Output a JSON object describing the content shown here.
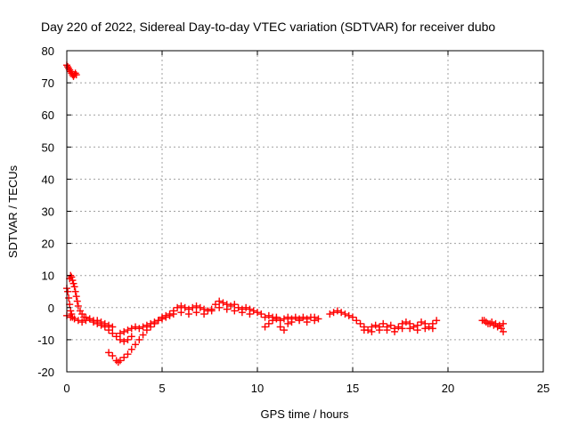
{
  "chart_data": {
    "type": "scatter",
    "title": "Day 220 of 2022, Sidereal Day-to-day VTEC variation (SDTVAR) for receiver dubo",
    "xlabel": "GPS time / hours",
    "ylabel": "SDTVAR / TECUs",
    "xlim": [
      0,
      25
    ],
    "ylim": [
      -20,
      80
    ],
    "x_ticks": [
      0,
      5,
      10,
      15,
      20,
      25
    ],
    "y_ticks": [
      -20,
      -10,
      0,
      10,
      20,
      30,
      40,
      50,
      60,
      70,
      80
    ],
    "grid": true,
    "marker": "plus",
    "color": "#ff0000",
    "series": [
      {
        "name": "SDTVAR",
        "points": [
          [
            0.0,
            75.5
          ],
          [
            0.05,
            75
          ],
          [
            0.1,
            74.5
          ],
          [
            0.15,
            74
          ],
          [
            0.2,
            73.5
          ],
          [
            0.25,
            73
          ],
          [
            0.3,
            72.5
          ],
          [
            0.35,
            72
          ],
          [
            0.4,
            72.5
          ],
          [
            0.45,
            73
          ],
          [
            0.5,
            72.5
          ],
          [
            0.0,
            6
          ],
          [
            0.05,
            5
          ],
          [
            0.1,
            3
          ],
          [
            0.15,
            1
          ],
          [
            0.2,
            -1
          ],
          [
            0.25,
            -2
          ],
          [
            0.3,
            -3
          ],
          [
            0.15,
            9
          ],
          [
            0.2,
            10
          ],
          [
            0.25,
            9.5
          ],
          [
            0.3,
            8.5
          ],
          [
            0.35,
            7.5
          ],
          [
            0.4,
            6.5
          ],
          [
            0.45,
            5
          ],
          [
            0.5,
            3.5
          ],
          [
            0.55,
            2
          ],
          [
            0.6,
            0.5
          ],
          [
            0.7,
            -1
          ],
          [
            0.8,
            -2
          ],
          [
            0.9,
            -3
          ],
          [
            0.0,
            -2.5
          ],
          [
            0.2,
            -3
          ],
          [
            0.4,
            -3.5
          ],
          [
            0.6,
            -4
          ],
          [
            0.8,
            -4.5
          ],
          [
            1.0,
            -4
          ],
          [
            1.2,
            -3.5
          ],
          [
            1.4,
            -4.5
          ],
          [
            1.6,
            -5
          ],
          [
            1.8,
            -5.5
          ],
          [
            2.0,
            -6
          ],
          [
            2.2,
            -7
          ],
          [
            2.4,
            -8
          ],
          [
            2.6,
            -9
          ],
          [
            2.8,
            -10
          ],
          [
            3.0,
            -10.5
          ],
          [
            3.2,
            -10
          ],
          [
            3.4,
            -9
          ],
          [
            1.0,
            -3
          ],
          [
            1.2,
            -3.5
          ],
          [
            1.4,
            -4
          ],
          [
            1.6,
            -4
          ],
          [
            1.8,
            -4.5
          ],
          [
            2.0,
            -5
          ],
          [
            2.2,
            -5.5
          ],
          [
            2.4,
            -6
          ],
          [
            2.2,
            -14
          ],
          [
            2.4,
            -15
          ],
          [
            2.6,
            -16.5
          ],
          [
            2.7,
            -17
          ],
          [
            2.8,
            -16.5
          ],
          [
            3.0,
            -15.5
          ],
          [
            3.2,
            -14.5
          ],
          [
            3.4,
            -13
          ],
          [
            3.6,
            -11.5
          ],
          [
            3.8,
            -10
          ],
          [
            4.0,
            -8.5
          ],
          [
            4.2,
            -7
          ],
          [
            4.4,
            -6
          ],
          [
            4.6,
            -5
          ],
          [
            4.8,
            -4
          ],
          [
            5.0,
            -3
          ],
          [
            5.2,
            -2.5
          ],
          [
            5.4,
            -2
          ],
          [
            2.8,
            -8
          ],
          [
            3.0,
            -7.5
          ],
          [
            3.2,
            -7
          ],
          [
            3.4,
            -6.5
          ],
          [
            3.6,
            -6
          ],
          [
            3.8,
            -6.5
          ],
          [
            4.0,
            -6
          ],
          [
            4.2,
            -5.5
          ],
          [
            4.4,
            -5
          ],
          [
            4.6,
            -4.5
          ],
          [
            4.8,
            -4
          ],
          [
            5.0,
            -3.5
          ],
          [
            5.2,
            -3
          ],
          [
            5.4,
            -2.5
          ],
          [
            5.6,
            -2
          ],
          [
            5.6,
            -1
          ],
          [
            5.8,
            0
          ],
          [
            6.0,
            0.5
          ],
          [
            6.2,
            0
          ],
          [
            6.4,
            -0.5
          ],
          [
            6.6,
            0
          ],
          [
            6.8,
            0.5
          ],
          [
            7.0,
            0
          ],
          [
            7.2,
            -0.5
          ],
          [
            7.4,
            -1
          ],
          [
            7.6,
            -0.5
          ],
          [
            7.8,
            1
          ],
          [
            8.0,
            2
          ],
          [
            8.2,
            1.5
          ],
          [
            8.4,
            1
          ],
          [
            8.6,
            0.5
          ],
          [
            8.8,
            1
          ],
          [
            9.0,
            0
          ],
          [
            9.2,
            -0.5
          ],
          [
            9.4,
            0
          ],
          [
            9.6,
            -0.5
          ],
          [
            9.8,
            -1
          ],
          [
            10.0,
            -1.5
          ],
          [
            6.0,
            -1.5
          ],
          [
            6.4,
            -2
          ],
          [
            6.8,
            -1.5
          ],
          [
            7.2,
            -2
          ],
          [
            7.6,
            -1
          ],
          [
            8.0,
            0
          ],
          [
            8.4,
            -0.5
          ],
          [
            8.8,
            -1
          ],
          [
            9.2,
            -1.5
          ],
          [
            9.6,
            -2
          ],
          [
            10.2,
            -2
          ],
          [
            10.4,
            -3
          ],
          [
            10.6,
            -2.5
          ],
          [
            10.8,
            -3
          ],
          [
            11.0,
            -3.5
          ],
          [
            11.2,
            -4
          ],
          [
            11.4,
            -3.5
          ],
          [
            11.6,
            -3
          ],
          [
            11.8,
            -3.5
          ],
          [
            12.0,
            -3
          ],
          [
            12.2,
            -3.5
          ],
          [
            12.4,
            -3
          ],
          [
            12.6,
            -3.5
          ],
          [
            12.8,
            -3
          ],
          [
            13.0,
            -3
          ],
          [
            13.2,
            -3.5
          ],
          [
            10.4,
            -6
          ],
          [
            10.6,
            -5
          ],
          [
            10.8,
            -4
          ],
          [
            11.0,
            -3
          ],
          [
            11.2,
            -6
          ],
          [
            11.4,
            -7
          ],
          [
            11.6,
            -5
          ],
          [
            11.8,
            -4.5
          ],
          [
            12.2,
            -4
          ],
          [
            12.6,
            -4.5
          ],
          [
            13.0,
            -4
          ],
          [
            13.8,
            -2
          ],
          [
            14.0,
            -1.5
          ],
          [
            14.2,
            -1
          ],
          [
            14.4,
            -1.5
          ],
          [
            14.6,
            -2
          ],
          [
            14.8,
            -2.5
          ],
          [
            15.0,
            -3
          ],
          [
            15.2,
            -4
          ],
          [
            15.4,
            -5
          ],
          [
            15.6,
            -6
          ],
          [
            15.8,
            -7
          ],
          [
            16.0,
            -6
          ],
          [
            16.2,
            -5.5
          ],
          [
            16.4,
            -6
          ],
          [
            16.6,
            -5
          ],
          [
            16.8,
            -6
          ],
          [
            17.0,
            -5.5
          ],
          [
            17.2,
            -6.5
          ],
          [
            17.4,
            -6
          ],
          [
            17.6,
            -5
          ],
          [
            17.8,
            -4.5
          ],
          [
            18.0,
            -5
          ],
          [
            18.2,
            -6
          ],
          [
            18.4,
            -5.5
          ],
          [
            18.6,
            -4.5
          ],
          [
            18.8,
            -5
          ],
          [
            19.0,
            -6
          ],
          [
            19.2,
            -5
          ],
          [
            19.4,
            -4
          ],
          [
            15.6,
            -7
          ],
          [
            16.0,
            -7.5
          ],
          [
            16.4,
            -7
          ],
          [
            16.8,
            -7
          ],
          [
            17.2,
            -7.5
          ],
          [
            17.6,
            -6.5
          ],
          [
            18.0,
            -6.5
          ],
          [
            18.4,
            -7
          ],
          [
            18.8,
            -6.5
          ],
          [
            19.2,
            -6.5
          ],
          [
            21.8,
            -4
          ],
          [
            22.0,
            -4.5
          ],
          [
            22.2,
            -5
          ],
          [
            22.4,
            -5.5
          ],
          [
            22.6,
            -6
          ],
          [
            22.8,
            -6.5
          ],
          [
            22.9,
            -7.5
          ],
          [
            21.9,
            -4
          ],
          [
            22.1,
            -5
          ],
          [
            22.3,
            -4.5
          ],
          [
            22.5,
            -5
          ],
          [
            22.7,
            -5.5
          ],
          [
            22.9,
            -5
          ]
        ]
      }
    ]
  }
}
